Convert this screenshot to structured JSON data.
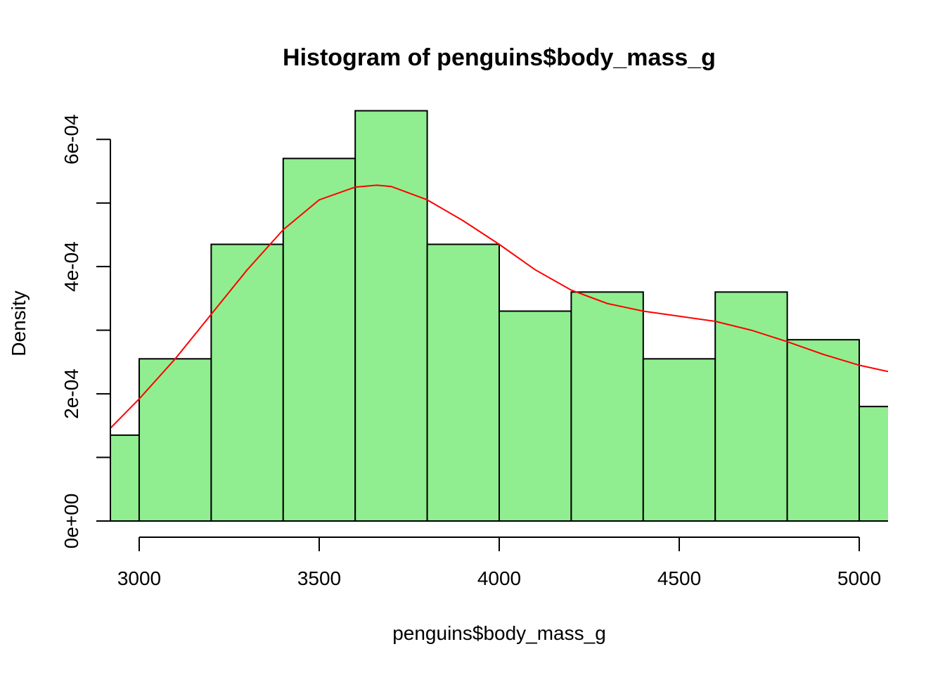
{
  "chart_data": {
    "type": "bar",
    "title": "Histogram of penguins$body_mass_g",
    "xlabel": "penguins$body_mass_g",
    "ylabel": "Density",
    "xlim": [
      2920,
      5080
    ],
    "ylim": [
      0,
      0.00065
    ],
    "x_ticks": [
      3000,
      3500,
      4000,
      4500,
      5000
    ],
    "x_tick_labels": [
      "3000",
      "3500",
      "4000",
      "4500",
      "5000"
    ],
    "y_ticks": [
      0,
      0.0002,
      0.0004,
      0.0006
    ],
    "y_tick_labels": [
      "0e+00",
      "2e-04",
      "4e-04",
      "6e-04"
    ],
    "y_minor_ticks": [
      0.0001,
      0.0003,
      0.0005
    ],
    "bar_color": "#90ee90",
    "bar_border_color": "#000000",
    "bins": [
      {
        "start": 2800,
        "end": 3000,
        "density": 0.000135
      },
      {
        "start": 3000,
        "end": 3200,
        "density": 0.000255
      },
      {
        "start": 3200,
        "end": 3400,
        "density": 0.000435
      },
      {
        "start": 3400,
        "end": 3600,
        "density": 0.00057
      },
      {
        "start": 3600,
        "end": 3800,
        "density": 0.000645
      },
      {
        "start": 3800,
        "end": 4000,
        "density": 0.000435
      },
      {
        "start": 4000,
        "end": 4200,
        "density": 0.00033
      },
      {
        "start": 4200,
        "end": 4400,
        "density": 0.00036
      },
      {
        "start": 4400,
        "end": 4600,
        "density": 0.000255
      },
      {
        "start": 4600,
        "end": 4800,
        "density": 0.00036
      },
      {
        "start": 4800,
        "end": 5000,
        "density": 0.000285
      },
      {
        "start": 5000,
        "end": 5200,
        "density": 0.00018
      }
    ],
    "density_curve": {
      "color": "#ff0000",
      "points": [
        [
          2920,
          0.000146
        ],
        [
          3000,
          0.000192
        ],
        [
          3100,
          0.000255
        ],
        [
          3200,
          0.000325
        ],
        [
          3300,
          0.000395
        ],
        [
          3400,
          0.000458
        ],
        [
          3500,
          0.000505
        ],
        [
          3600,
          0.000525
        ],
        [
          3660,
          0.000528
        ],
        [
          3700,
          0.000526
        ],
        [
          3800,
          0.000505
        ],
        [
          3900,
          0.000472
        ],
        [
          4000,
          0.000435
        ],
        [
          4100,
          0.000395
        ],
        [
          4200,
          0.000363
        ],
        [
          4300,
          0.000342
        ],
        [
          4400,
          0.00033
        ],
        [
          4500,
          0.000322
        ],
        [
          4600,
          0.000314
        ],
        [
          4700,
          0.0003
        ],
        [
          4800,
          0.000282
        ],
        [
          4900,
          0.000262
        ],
        [
          5000,
          0.000245
        ],
        [
          5080,
          0.000235
        ]
      ]
    }
  }
}
